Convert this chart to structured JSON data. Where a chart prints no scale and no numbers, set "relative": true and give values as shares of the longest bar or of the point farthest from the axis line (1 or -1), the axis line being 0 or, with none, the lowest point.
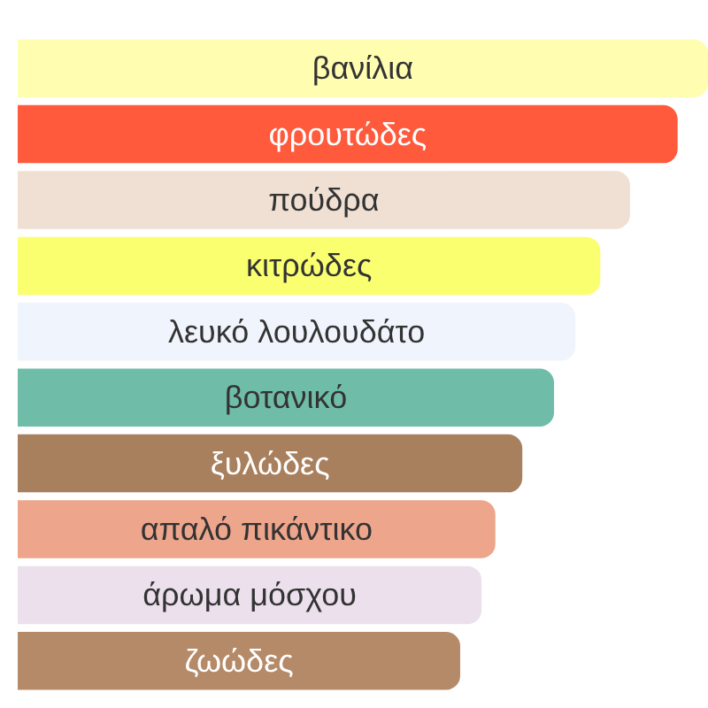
{
  "chart_data": {
    "type": "bar",
    "orientation": "horizontal",
    "relative": true,
    "categories": [
      "βανίλια",
      "φρουτώδες",
      "πούδρα",
      "κιτρώδες",
      "λευκό λουλουδάτο",
      "βοτανικό",
      "ξυλώδες",
      "απαλό πικάντικο",
      "άρωμα μόσχου",
      "ζωώδες"
    ],
    "values": [
      1,
      0.956,
      0.887,
      0.844,
      0.808,
      0.777,
      0.731,
      0.692,
      0.672,
      0.641
    ],
    "colors": [
      "#fffdb0",
      "#ff5a3c",
      "#f0e0d4",
      "#faff70",
      "#f0f4fc",
      "#6fbca8",
      "#a9805e",
      "#eda58c",
      "#ebe0ec",
      "#b58a68"
    ]
  }
}
